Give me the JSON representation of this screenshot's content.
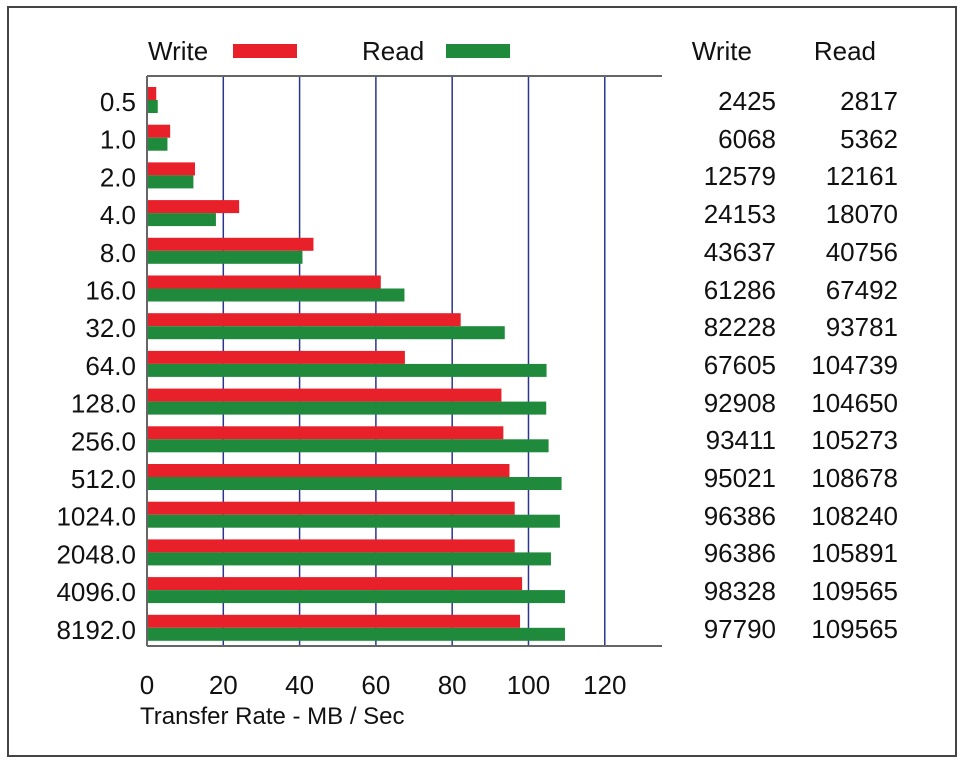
{
  "chart_data": {
    "type": "bar",
    "orientation": "horizontal",
    "categories": [
      "0.5",
      "1.0",
      "2.0",
      "4.0",
      "8.0",
      "16.0",
      "32.0",
      "64.0",
      "128.0",
      "256.0",
      "512.0",
      "1024.0",
      "2048.0",
      "4096.0",
      "8192.0"
    ],
    "series": [
      {
        "name": "Write",
        "color": "#e8202a",
        "values": [
          2425,
          6068,
          12579,
          24153,
          43637,
          61286,
          82228,
          67605,
          92908,
          93411,
          95021,
          96386,
          96386,
          98328,
          97790
        ]
      },
      {
        "name": "Read",
        "color": "#1f8a3c",
        "values": [
          2817,
          5362,
          12161,
          18070,
          40756,
          67492,
          93781,
          104739,
          104650,
          105273,
          108678,
          108240,
          105891,
          109565,
          109565
        ]
      }
    ],
    "xlabel": "Transfer Rate - MB / Sec",
    "xlim": [
      0,
      135
    ],
    "xticks": [
      "0",
      "20",
      "40",
      "60",
      "80",
      "100",
      "120"
    ],
    "legend_position": "top",
    "grid": true,
    "table": {
      "headers": [
        "Write",
        "Read"
      ]
    }
  }
}
